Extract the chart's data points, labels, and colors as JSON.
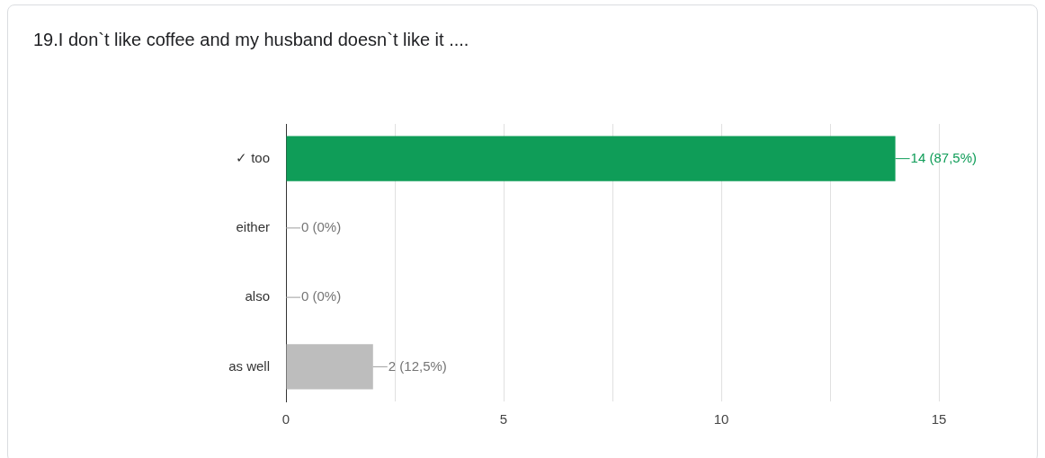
{
  "chart_data": {
    "type": "bar",
    "orientation": "horizontal",
    "title": "19.I don`t like coffee and my husband doesn`t like it ....",
    "categories": [
      "✓ too",
      "either",
      "also",
      "as well"
    ],
    "values": [
      14,
      0,
      0,
      2
    ],
    "colors": [
      "#0f9d58",
      "#bdbdbd",
      "#bdbdbd",
      "#bdbdbd"
    ],
    "value_labels": [
      "14 (87,5%)",
      "0 (0%)",
      "0 (0%)",
      "2 (12,5%)"
    ],
    "xlim": [
      0,
      15
    ],
    "xticks": [
      0,
      {
        "value": 2.5,
        "label": null
      },
      5,
      {
        "value": 7.5,
        "label": null
      },
      10,
      {
        "value": 12.5,
        "label": null
      },
      15
    ],
    "grid": "x",
    "legend": false
  }
}
